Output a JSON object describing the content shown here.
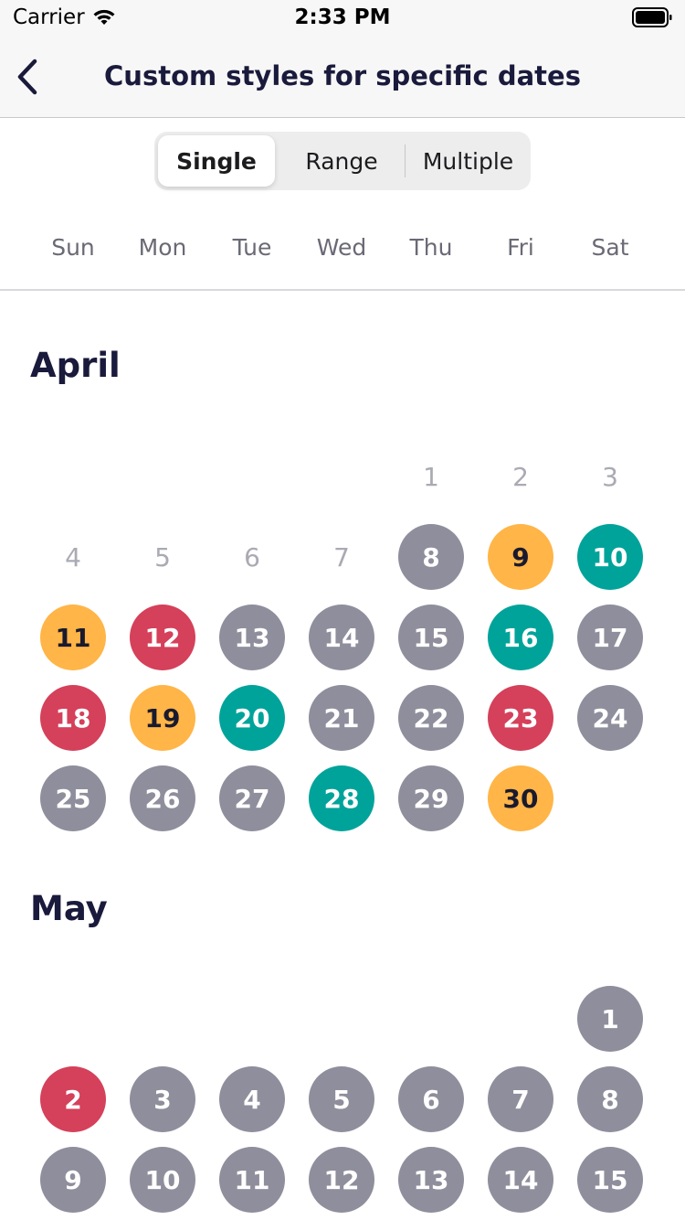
{
  "status_bar": {
    "carrier": "Carrier",
    "time": "2:33 PM"
  },
  "nav": {
    "title": "Custom styles for specific dates",
    "back_icon": "chevron-left-icon"
  },
  "segments": [
    "Single",
    "Range",
    "Multiple"
  ],
  "selected_segment": "Single",
  "weekdays": [
    "Sun",
    "Mon",
    "Tue",
    "Wed",
    "Thu",
    "Fri",
    "Sat"
  ],
  "colors": {
    "gray": "#8e8e9c",
    "yellow": "#ffb547",
    "teal": "#00a39a",
    "red": "#d5405a",
    "plain": "#aaaab4"
  },
  "months": [
    {
      "name": "April",
      "first_weekday": 4,
      "days": [
        {
          "d": "1",
          "style": "plain"
        },
        {
          "d": "2",
          "style": "plain"
        },
        {
          "d": "3",
          "style": "plain"
        },
        {
          "d": "4",
          "style": "plain"
        },
        {
          "d": "5",
          "style": "plain"
        },
        {
          "d": "6",
          "style": "plain"
        },
        {
          "d": "7",
          "style": "plain"
        },
        {
          "d": "8",
          "style": "gray"
        },
        {
          "d": "9",
          "style": "yellow"
        },
        {
          "d": "10",
          "style": "teal"
        },
        {
          "d": "11",
          "style": "yellow"
        },
        {
          "d": "12",
          "style": "red"
        },
        {
          "d": "13",
          "style": "gray"
        },
        {
          "d": "14",
          "style": "gray"
        },
        {
          "d": "15",
          "style": "gray"
        },
        {
          "d": "16",
          "style": "teal"
        },
        {
          "d": "17",
          "style": "gray"
        },
        {
          "d": "18",
          "style": "red"
        },
        {
          "d": "19",
          "style": "yellow"
        },
        {
          "d": "20",
          "style": "teal"
        },
        {
          "d": "21",
          "style": "gray"
        },
        {
          "d": "22",
          "style": "gray"
        },
        {
          "d": "23",
          "style": "red"
        },
        {
          "d": "24",
          "style": "gray"
        },
        {
          "d": "25",
          "style": "gray"
        },
        {
          "d": "26",
          "style": "gray"
        },
        {
          "d": "27",
          "style": "gray"
        },
        {
          "d": "28",
          "style": "teal"
        },
        {
          "d": "29",
          "style": "gray"
        },
        {
          "d": "30",
          "style": "yellow"
        }
      ]
    },
    {
      "name": "May",
      "first_weekday": 6,
      "days": [
        {
          "d": "1",
          "style": "gray"
        },
        {
          "d": "2",
          "style": "red"
        },
        {
          "d": "3",
          "style": "gray"
        },
        {
          "d": "4",
          "style": "gray"
        },
        {
          "d": "5",
          "style": "gray"
        },
        {
          "d": "6",
          "style": "gray"
        },
        {
          "d": "7",
          "style": "gray"
        },
        {
          "d": "8",
          "style": "gray"
        },
        {
          "d": "9",
          "style": "gray"
        },
        {
          "d": "10",
          "style": "gray"
        },
        {
          "d": "11",
          "style": "gray"
        },
        {
          "d": "12",
          "style": "gray"
        },
        {
          "d": "13",
          "style": "gray"
        },
        {
          "d": "14",
          "style": "gray"
        },
        {
          "d": "15",
          "style": "gray"
        }
      ]
    }
  ]
}
